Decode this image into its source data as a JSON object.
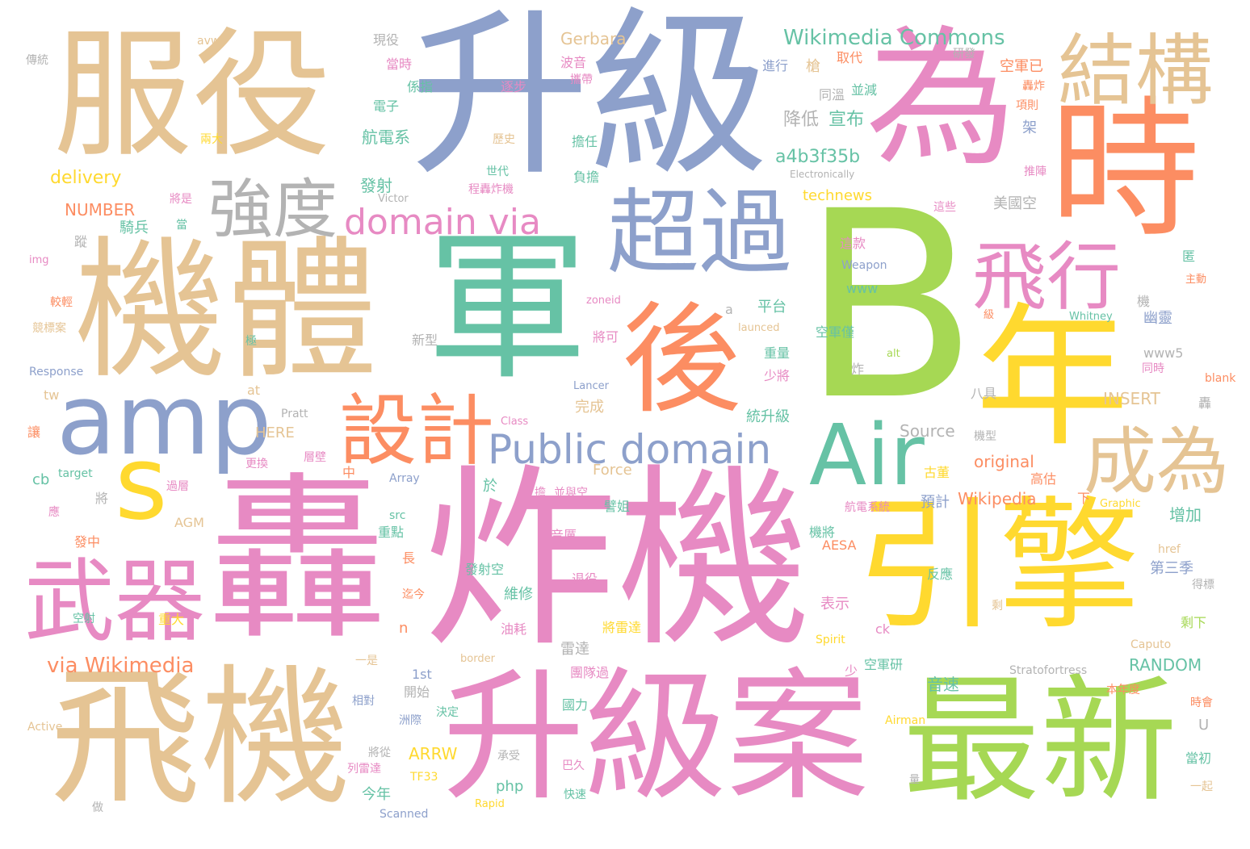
{
  "colors": {
    "tan": "#e5c494",
    "blue": "#8da0cb",
    "pink": "#e78ac3",
    "orange": "#fc8d62",
    "green": "#66c2a5",
    "lime": "#a6d854",
    "yellow": "#ffd92f",
    "gray": "#b3b3b3"
  },
  "words": [
    {
      "t": "服役",
      "c": "tan"
    },
    {
      "t": "升級",
      "c": "blue"
    },
    {
      "t": "為",
      "c": "pink"
    },
    {
      "t": "時",
      "c": "orange"
    },
    {
      "t": "結構",
      "c": "tan"
    },
    {
      "t": "機體",
      "c": "tan"
    },
    {
      "t": "強度",
      "c": "gray"
    },
    {
      "t": "軍",
      "c": "green"
    },
    {
      "t": "超過",
      "c": "blue"
    },
    {
      "t": "B",
      "c": "lime"
    },
    {
      "t": "年",
      "c": "yellow"
    },
    {
      "t": "飛行",
      "c": "pink"
    },
    {
      "t": "後",
      "c": "orange"
    },
    {
      "t": "domain via",
      "c": "pink"
    },
    {
      "t": "amp",
      "c": "blue"
    },
    {
      "t": "Air",
      "c": "green"
    },
    {
      "t": "設計",
      "c": "orange"
    },
    {
      "t": "s",
      "c": "yellow"
    },
    {
      "t": "Public domain",
      "c": "blue"
    },
    {
      "t": "成為",
      "c": "tan"
    },
    {
      "t": "轟",
      "c": "pink"
    },
    {
      "t": "炸機",
      "c": "pink"
    },
    {
      "t": "引擎",
      "c": "yellow"
    },
    {
      "t": "武器",
      "c": "pink"
    },
    {
      "t": "飛機",
      "c": "tan"
    },
    {
      "t": "升級案",
      "c": "pink"
    },
    {
      "t": "最新",
      "c": "lime"
    },
    {
      "t": "via Wikimedia",
      "c": "orange"
    },
    {
      "t": "Wikimedia Commons",
      "c": "green"
    },
    {
      "t": "Gerbara",
      "c": "tan"
    },
    {
      "t": "現役",
      "c": "gray"
    },
    {
      "t": "avw",
      "c": "tan"
    },
    {
      "t": "傳統",
      "c": "gray"
    },
    {
      "t": "當時",
      "c": "pink"
    },
    {
      "t": "波音",
      "c": "pink"
    },
    {
      "t": "進行",
      "c": "blue"
    },
    {
      "t": "槍",
      "c": "tan"
    },
    {
      "t": "取代",
      "c": "orange"
    },
    {
      "t": "研發",
      "c": "gray"
    },
    {
      "t": "空軍已",
      "c": "orange"
    },
    {
      "t": "係指",
      "c": "green"
    },
    {
      "t": "攜帶",
      "c": "pink"
    },
    {
      "t": "逐步",
      "c": "pink"
    },
    {
      "t": "同溫",
      "c": "gray"
    },
    {
      "t": "並減",
      "c": "green"
    },
    {
      "t": "轟炸",
      "c": "orange"
    },
    {
      "t": "電子",
      "c": "green"
    },
    {
      "t": "項則",
      "c": "orange"
    },
    {
      "t": "降低",
      "c": "gray"
    },
    {
      "t": "宣布",
      "c": "green"
    },
    {
      "t": "架",
      "c": "blue"
    },
    {
      "t": "航電系",
      "c": "green"
    },
    {
      "t": "兩大",
      "c": "yellow"
    },
    {
      "t": "擔任",
      "c": "green"
    },
    {
      "t": "歷史",
      "c": "tan"
    },
    {
      "t": "a4b3f35b",
      "c": "green"
    },
    {
      "t": "推陣",
      "c": "pink"
    },
    {
      "t": "delivery",
      "c": "yellow"
    },
    {
      "t": "世代",
      "c": "green"
    },
    {
      "t": "負擔",
      "c": "green"
    },
    {
      "t": "Electronically",
      "c": "gray"
    },
    {
      "t": "發射",
      "c": "green"
    },
    {
      "t": "程轟炸機",
      "c": "pink"
    },
    {
      "t": "將是",
      "c": "pink"
    },
    {
      "t": "Victor",
      "c": "gray"
    },
    {
      "t": "technews",
      "c": "yellow"
    },
    {
      "t": "美國空",
      "c": "gray"
    },
    {
      "t": "NUMBER",
      "c": "orange"
    },
    {
      "t": "當",
      "c": "green"
    },
    {
      "t": "騎兵",
      "c": "green"
    },
    {
      "t": "這些",
      "c": "pink"
    },
    {
      "t": "蹤",
      "c": "gray"
    },
    {
      "t": "這款",
      "c": "pink"
    },
    {
      "t": "匿",
      "c": "green"
    },
    {
      "t": "img",
      "c": "pink"
    },
    {
      "t": "Weapon",
      "c": "blue"
    },
    {
      "t": "主動",
      "c": "orange"
    },
    {
      "t": "www",
      "c": "green"
    },
    {
      "t": "較輕",
      "c": "orange"
    },
    {
      "t": "zoneid",
      "c": "pink"
    },
    {
      "t": "機",
      "c": "gray"
    },
    {
      "t": "平台",
      "c": "green"
    },
    {
      "t": "級",
      "c": "orange"
    },
    {
      "t": "a",
      "c": "gray"
    },
    {
      "t": "幽靈",
      "c": "blue"
    },
    {
      "t": "競標案",
      "c": "tan"
    },
    {
      "t": "launced",
      "c": "tan"
    },
    {
      "t": "空軍僅",
      "c": "green"
    },
    {
      "t": "Whitney",
      "c": "green"
    },
    {
      "t": "將可",
      "c": "pink"
    },
    {
      "t": "極",
      "c": "green"
    },
    {
      "t": "新型",
      "c": "gray"
    },
    {
      "t": "alt",
      "c": "lime"
    },
    {
      "t": "重量",
      "c": "green"
    },
    {
      "t": "www5",
      "c": "gray"
    },
    {
      "t": "Response",
      "c": "blue"
    },
    {
      "t": "少將",
      "c": "pink"
    },
    {
      "t": "炸",
      "c": "gray"
    },
    {
      "t": "同時",
      "c": "pink"
    },
    {
      "t": "blank",
      "c": "orange"
    },
    {
      "t": "Lancer",
      "c": "blue"
    },
    {
      "t": "at",
      "c": "tan"
    },
    {
      "t": "八具",
      "c": "gray"
    },
    {
      "t": "tw",
      "c": "tan"
    },
    {
      "t": "INSERT",
      "c": "tan"
    },
    {
      "t": "轟",
      "c": "gray"
    },
    {
      "t": "Pratt",
      "c": "gray"
    },
    {
      "t": "完成",
      "c": "tan"
    },
    {
      "t": "統升級",
      "c": "green"
    },
    {
      "t": "Class",
      "c": "pink"
    },
    {
      "t": "讓",
      "c": "orange"
    },
    {
      "t": "HERE",
      "c": "tan"
    },
    {
      "t": "Source",
      "c": "gray"
    },
    {
      "t": "機型",
      "c": "gray"
    },
    {
      "t": "original",
      "c": "orange"
    },
    {
      "t": "target",
      "c": "green"
    },
    {
      "t": "更換",
      "c": "pink"
    },
    {
      "t": "層壁",
      "c": "pink"
    },
    {
      "t": "Force",
      "c": "tan"
    },
    {
      "t": "古董",
      "c": "yellow"
    },
    {
      "t": "高估",
      "c": "orange"
    },
    {
      "t": "cb",
      "c": "green"
    },
    {
      "t": "中",
      "c": "orange"
    },
    {
      "t": "Array",
      "c": "blue"
    },
    {
      "t": "於",
      "c": "green"
    },
    {
      "t": "擔",
      "c": "pink"
    },
    {
      "t": "過層",
      "c": "pink"
    },
    {
      "t": "將",
      "c": "gray"
    },
    {
      "t": "並與空",
      "c": "pink"
    },
    {
      "t": "Wikipedia",
      "c": "orange"
    },
    {
      "t": "預計",
      "c": "blue"
    },
    {
      "t": "下",
      "c": "orange"
    },
    {
      "t": "Graphic",
      "c": "yellow"
    },
    {
      "t": "應",
      "c": "pink"
    },
    {
      "t": "src",
      "c": "green"
    },
    {
      "t": "AGM",
      "c": "tan"
    },
    {
      "t": "譬姐",
      "c": "green"
    },
    {
      "t": "航電系統",
      "c": "pink"
    },
    {
      "t": "增加",
      "c": "green"
    },
    {
      "t": "重點",
      "c": "green"
    },
    {
      "t": "音厲",
      "c": "pink"
    },
    {
      "t": "機將",
      "c": "green"
    },
    {
      "t": "發中",
      "c": "orange"
    },
    {
      "t": "AESA",
      "c": "orange"
    },
    {
      "t": "href",
      "c": "tan"
    },
    {
      "t": "長",
      "c": "orange"
    },
    {
      "t": "發射空",
      "c": "green"
    },
    {
      "t": "退役",
      "c": "pink"
    },
    {
      "t": "反應",
      "c": "green"
    },
    {
      "t": "第三季",
      "c": "blue"
    },
    {
      "t": "迄今",
      "c": "orange"
    },
    {
      "t": "維修",
      "c": "green"
    },
    {
      "t": "表示",
      "c": "pink"
    },
    {
      "t": "剩",
      "c": "tan"
    },
    {
      "t": "得標",
      "c": "gray"
    },
    {
      "t": "空射",
      "c": "green"
    },
    {
      "t": "重大",
      "c": "yellow"
    },
    {
      "t": "n",
      "c": "orange"
    },
    {
      "t": "油耗",
      "c": "pink"
    },
    {
      "t": "將雷達",
      "c": "yellow"
    },
    {
      "t": "ck",
      "c": "pink"
    },
    {
      "t": "剩下",
      "c": "lime"
    },
    {
      "t": "雷達",
      "c": "gray"
    },
    {
      "t": "Spirit",
      "c": "yellow"
    },
    {
      "t": "Caputo",
      "c": "tan"
    },
    {
      "t": "一是",
      "c": "tan"
    },
    {
      "t": "border",
      "c": "tan"
    },
    {
      "t": "少",
      "c": "pink"
    },
    {
      "t": "空軍研",
      "c": "green"
    },
    {
      "t": "RANDOM",
      "c": "green"
    },
    {
      "t": "1st",
      "c": "blue"
    },
    {
      "t": "團隊過",
      "c": "pink"
    },
    {
      "t": "Stratofortress",
      "c": "gray"
    },
    {
      "t": "開始",
      "c": "gray"
    },
    {
      "t": "音速",
      "c": "green"
    },
    {
      "t": "本年度",
      "c": "orange"
    },
    {
      "t": "相對",
      "c": "blue"
    },
    {
      "t": "國力",
      "c": "green"
    },
    {
      "t": "時會",
      "c": "orange"
    },
    {
      "t": "洲際",
      "c": "blue"
    },
    {
      "t": "決定",
      "c": "green"
    },
    {
      "t": "Airman",
      "c": "yellow"
    },
    {
      "t": "Active",
      "c": "tan"
    },
    {
      "t": "U",
      "c": "gray"
    },
    {
      "t": "將從",
      "c": "gray"
    },
    {
      "t": "ARRW",
      "c": "yellow"
    },
    {
      "t": "承受",
      "c": "gray"
    },
    {
      "t": "列雷達",
      "c": "pink"
    },
    {
      "t": "巴久",
      "c": "pink"
    },
    {
      "t": "當初",
      "c": "green"
    },
    {
      "t": "TF33",
      "c": "yellow"
    },
    {
      "t": "量",
      "c": "gray"
    },
    {
      "t": "今年",
      "c": "green"
    },
    {
      "t": "php",
      "c": "green"
    },
    {
      "t": "一起",
      "c": "tan"
    },
    {
      "t": "做",
      "c": "gray"
    },
    {
      "t": "Scanned",
      "c": "blue"
    },
    {
      "t": "Rapid",
      "c": "yellow"
    },
    {
      "t": "快速",
      "c": "green"
    }
  ]
}
